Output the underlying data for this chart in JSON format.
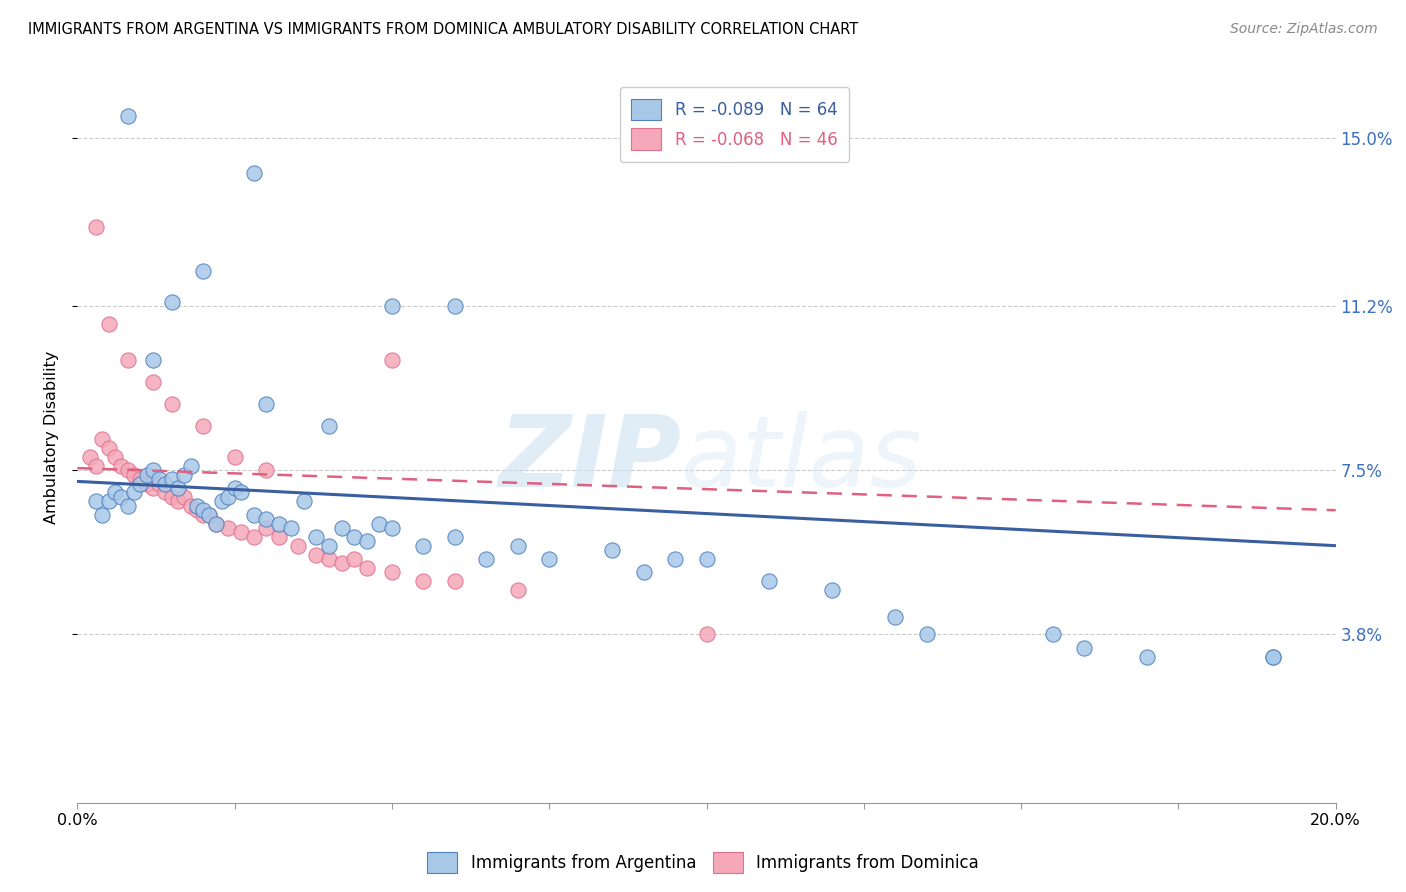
{
  "title": "IMMIGRANTS FROM ARGENTINA VS IMMIGRANTS FROM DOMINICA AMBULATORY DISABILITY CORRELATION CHART",
  "source": "Source: ZipAtlas.com",
  "ylabel": "Ambulatory Disability",
  "xlim": [
    0.0,
    0.2
  ],
  "ylim": [
    0.0,
    0.165
  ],
  "yticks": [
    0.038,
    0.075,
    0.112,
    0.15
  ],
  "ytick_labels": [
    "3.8%",
    "7.5%",
    "11.2%",
    "15.0%"
  ],
  "xticks": [
    0.0,
    0.025,
    0.05,
    0.075,
    0.1,
    0.125,
    0.15,
    0.175,
    0.2
  ],
  "xtick_labels_show": {
    "0.0": "0.0%",
    "0.20": "20.0%"
  },
  "color_argentina": "#a8c8e8",
  "color_dominica": "#f4a8b8",
  "trendline_argentina_color": "#3a5fa0",
  "trendline_dominica_color": "#e06080",
  "watermark_zip": "ZIP",
  "watermark_atlas": "atlas",
  "background_color": "#ffffff",
  "argentina_x": [
    0.003,
    0.004,
    0.005,
    0.006,
    0.007,
    0.008,
    0.009,
    0.01,
    0.011,
    0.012,
    0.013,
    0.014,
    0.015,
    0.016,
    0.017,
    0.018,
    0.019,
    0.02,
    0.021,
    0.022,
    0.023,
    0.024,
    0.025,
    0.026,
    0.028,
    0.03,
    0.032,
    0.034,
    0.036,
    0.038,
    0.04,
    0.042,
    0.044,
    0.046,
    0.048,
    0.05,
    0.055,
    0.06,
    0.065,
    0.07,
    0.075,
    0.085,
    0.09,
    0.095,
    0.1,
    0.11,
    0.12,
    0.13,
    0.135,
    0.155,
    0.16,
    0.17,
    0.19,
    0.028,
    0.02,
    0.015,
    0.06,
    0.05,
    0.04,
    0.03,
    0.008,
    0.012,
    0.19
  ],
  "argentina_y": [
    0.068,
    0.065,
    0.068,
    0.07,
    0.069,
    0.067,
    0.07,
    0.072,
    0.074,
    0.075,
    0.073,
    0.072,
    0.073,
    0.071,
    0.074,
    0.076,
    0.067,
    0.066,
    0.065,
    0.063,
    0.068,
    0.069,
    0.071,
    0.07,
    0.065,
    0.064,
    0.063,
    0.062,
    0.068,
    0.06,
    0.058,
    0.062,
    0.06,
    0.059,
    0.063,
    0.062,
    0.058,
    0.06,
    0.055,
    0.058,
    0.055,
    0.057,
    0.052,
    0.055,
    0.055,
    0.05,
    0.048,
    0.042,
    0.038,
    0.038,
    0.035,
    0.033,
    0.033,
    0.142,
    0.12,
    0.113,
    0.112,
    0.112,
    0.085,
    0.09,
    0.155,
    0.1,
    0.033
  ],
  "dominica_x": [
    0.002,
    0.003,
    0.004,
    0.005,
    0.006,
    0.007,
    0.008,
    0.009,
    0.01,
    0.011,
    0.012,
    0.013,
    0.014,
    0.015,
    0.016,
    0.017,
    0.018,
    0.019,
    0.02,
    0.021,
    0.022,
    0.024,
    0.026,
    0.028,
    0.03,
    0.032,
    0.035,
    0.038,
    0.04,
    0.042,
    0.044,
    0.046,
    0.05,
    0.055,
    0.06,
    0.07,
    0.003,
    0.005,
    0.008,
    0.012,
    0.015,
    0.02,
    0.025,
    0.03,
    0.05,
    0.1
  ],
  "dominica_y": [
    0.078,
    0.076,
    0.082,
    0.08,
    0.078,
    0.076,
    0.075,
    0.074,
    0.073,
    0.072,
    0.071,
    0.072,
    0.07,
    0.069,
    0.068,
    0.069,
    0.067,
    0.066,
    0.065,
    0.065,
    0.063,
    0.062,
    0.061,
    0.06,
    0.062,
    0.06,
    0.058,
    0.056,
    0.055,
    0.054,
    0.055,
    0.053,
    0.052,
    0.05,
    0.05,
    0.048,
    0.13,
    0.108,
    0.1,
    0.095,
    0.09,
    0.085,
    0.078,
    0.075,
    0.1,
    0.038
  ],
  "trend_arg_x0": 0.0,
  "trend_arg_x1": 0.2,
  "trend_arg_y0": 0.0725,
  "trend_arg_y1": 0.058,
  "trend_dom_x0": 0.0,
  "trend_dom_x1": 0.2,
  "trend_dom_y0": 0.0755,
  "trend_dom_y1": 0.066
}
